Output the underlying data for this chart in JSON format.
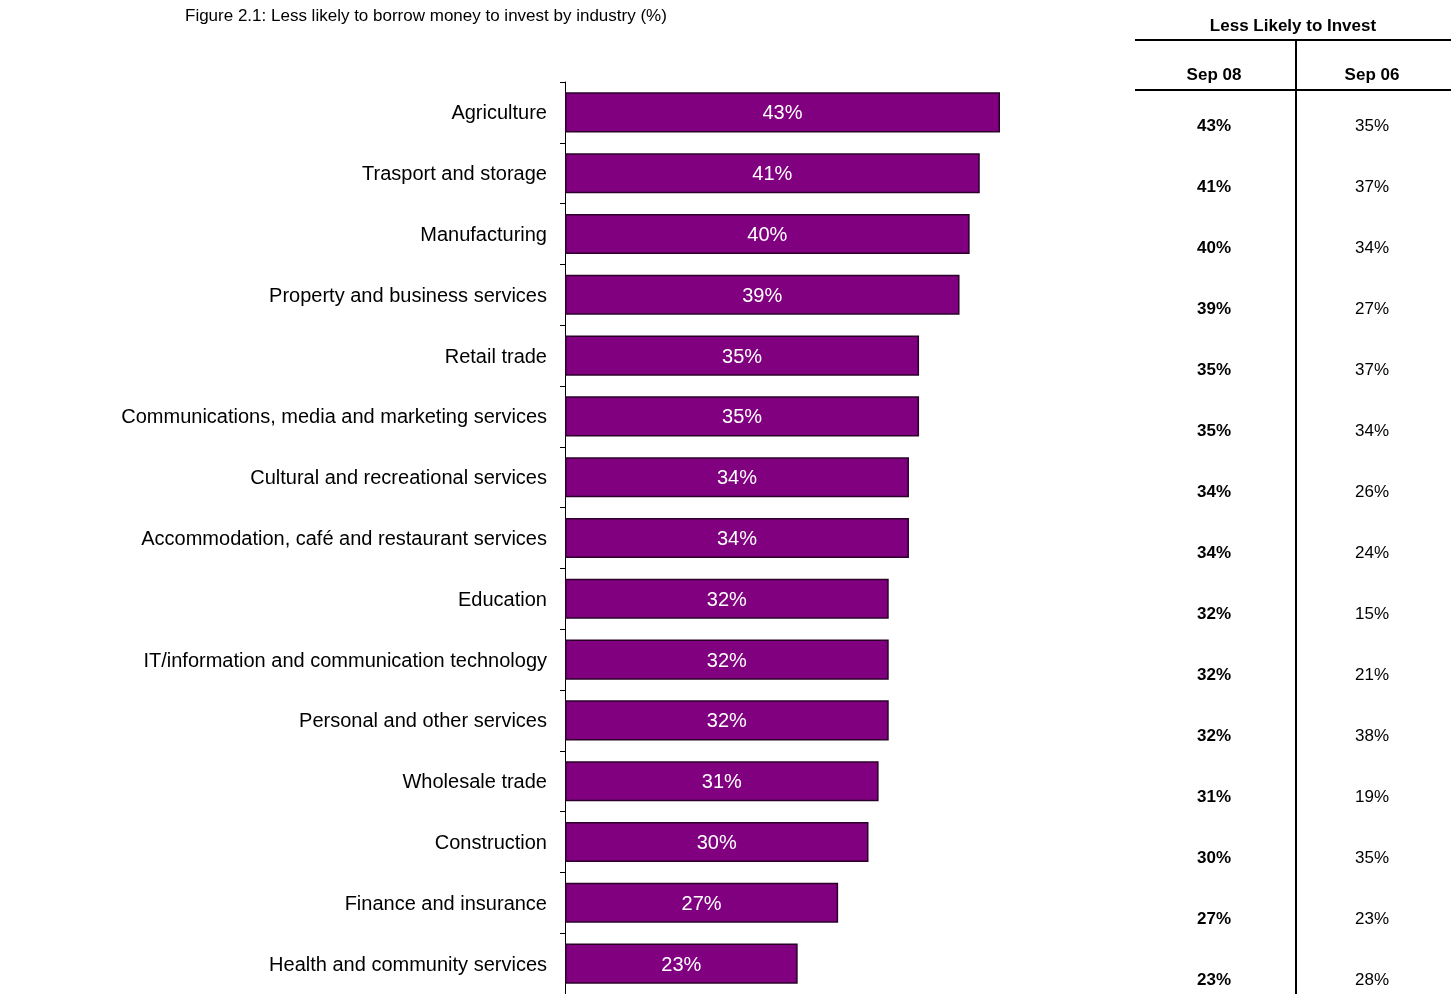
{
  "chart_data": [
    {
      "type": "bar",
      "orientation": "horizontal",
      "title": "Figure 2.1: Less likely to borrow money to invest by industry (%)",
      "categories": [
        "Agriculture",
        "Trasport and storage",
        "Manufacturing",
        "Property and business services",
        "Retail trade",
        "Communications, media and marketing services",
        "Cultural and recreational services",
        "Accommodation, café and restaurant services",
        "Education",
        "IT/information and communication technology",
        "Personal and other services",
        "Wholesale trade",
        "Construction",
        "Finance and insurance",
        "Health and community services"
      ],
      "values": [
        43,
        41,
        40,
        39,
        35,
        35,
        34,
        34,
        32,
        32,
        32,
        31,
        30,
        27,
        23
      ],
      "value_labels": [
        "43%",
        "41%",
        "40%",
        "39%",
        "35%",
        "35%",
        "34%",
        "34%",
        "32%",
        "32%",
        "32%",
        "31%",
        "30%",
        "27%",
        "23%"
      ],
      "color": "#800080"
    },
    {
      "type": "other",
      "title": "Less Likely to Invest",
      "categories": [
        "Sep 08",
        "Sep 06"
      ],
      "annotations": [
        "43%",
        "35%",
        "41%",
        "37%",
        "40%",
        "34%",
        "39%",
        "27%",
        "35%",
        "37%",
        "35%",
        "34%",
        "34%",
        "26%",
        "34%",
        "24%",
        "32%",
        "15%",
        "32%",
        "21%",
        "32%",
        "38%",
        "31%",
        "19%",
        "30%",
        "35%",
        "27%",
        "23%",
        "23%",
        "28%"
      ]
    }
  ]
}
